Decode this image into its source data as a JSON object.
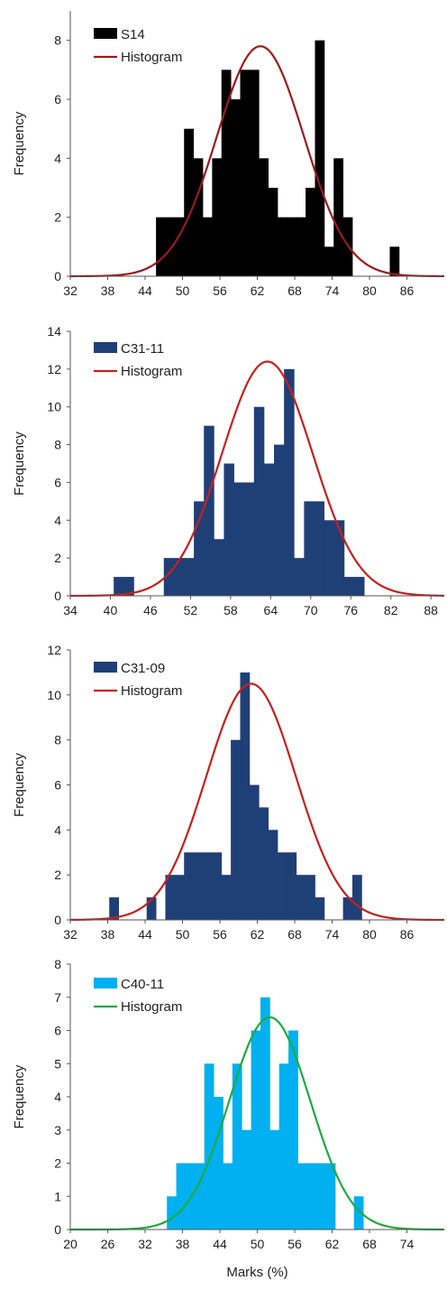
{
  "chart_data": [
    {
      "type": "bar",
      "ylabel": "Frequency",
      "xlabel": "",
      "bar_color": "#000000",
      "curve_color": "#9b1b1b",
      "legend": {
        "bars": "S14",
        "curve": "Histogram",
        "position": "top-left"
      },
      "xlim": [
        32,
        92
      ],
      "xticks": [
        32,
        38,
        44,
        50,
        56,
        62,
        68,
        74,
        80,
        86
      ],
      "ylim": [
        0,
        9
      ],
      "yticks": [
        0,
        2,
        4,
        6,
        8
      ],
      "bin_width": 1.5,
      "bins": [
        45.75,
        47.25,
        48.75,
        50.25,
        51.75,
        53.25,
        54.75,
        56.25,
        57.75,
        59.25,
        60.75,
        62.25,
        63.75,
        65.25,
        66.75,
        68.25,
        69.75,
        71.25,
        72.75,
        74.25,
        75.75,
        77.25,
        78.75,
        80.25,
        81.75,
        83.25,
        84.75
      ],
      "values": [
        2,
        2,
        2,
        5,
        4,
        2,
        4,
        7,
        6,
        7,
        7,
        4,
        3,
        2,
        2,
        2,
        3,
        8,
        1,
        4,
        2,
        0,
        0,
        0,
        0,
        1,
        0
      ],
      "curve": {
        "mean": 62.5,
        "sd": 7,
        "peak": 7.8
      }
    },
    {
      "type": "bar",
      "ylabel": "Frequency",
      "xlabel": "",
      "bar_color": "#1f3f77",
      "curve_color": "#c8201e",
      "legend": {
        "bars": "C31-11",
        "curve": "Histogram",
        "position": "top-left"
      },
      "xlim": [
        34,
        90
      ],
      "xticks": [
        34,
        40,
        46,
        52,
        58,
        64,
        70,
        76,
        82,
        88
      ],
      "ylim": [
        0,
        14
      ],
      "yticks": [
        0,
        2,
        4,
        6,
        8,
        10,
        12,
        14
      ],
      "bin_width": 1.5,
      "bins": [
        40.5,
        42,
        43.5,
        45,
        46.5,
        48,
        49.5,
        51,
        52.5,
        54,
        55.5,
        57,
        58.5,
        60,
        61.5,
        63,
        64.5,
        66,
        67.5,
        69,
        70.5,
        72,
        73.5,
        75,
        76.5
      ],
      "values": [
        1,
        1,
        0,
        0,
        0,
        2,
        2,
        2,
        5,
        9,
        3,
        7,
        6,
        6,
        10,
        7,
        8,
        12,
        2,
        5,
        5,
        4,
        4,
        1,
        1
      ],
      "curve": {
        "mean": 63.5,
        "sd": 6.8,
        "peak": 12.4
      }
    },
    {
      "type": "bar",
      "ylabel": "Frequency",
      "xlabel": "",
      "bar_color": "#1f3f77",
      "curve_color": "#c8201e",
      "legend": {
        "bars": "C31-09",
        "curve": "Histogram",
        "position": "top-left"
      },
      "xlim": [
        32,
        92
      ],
      "xticks": [
        32,
        38,
        44,
        50,
        56,
        62,
        68,
        74,
        80,
        86
      ],
      "ylim": [
        0,
        12
      ],
      "yticks": [
        0,
        2,
        4,
        6,
        8,
        10,
        12
      ],
      "bin_width": 1.5,
      "bins": [
        38.25,
        39.75,
        41.25,
        42.75,
        44.25,
        45.75,
        47.25,
        48.75,
        50.25,
        51.75,
        53.25,
        54.75,
        56.25,
        57.75,
        59.25,
        60.75,
        62.25,
        63.75,
        65.25,
        66.75,
        68.25,
        69.75,
        71.25,
        72.75,
        74.25,
        75.75,
        77.25
      ],
      "values": [
        1,
        0,
        0,
        0,
        1,
        0,
        2,
        2,
        3,
        3,
        3,
        3,
        2,
        8,
        11,
        6,
        5,
        4,
        3,
        3,
        2,
        2,
        1,
        0,
        0,
        1,
        2
      ],
      "curve": {
        "mean": 61,
        "sd": 7.2,
        "peak": 10.5
      }
    },
    {
      "type": "bar",
      "ylabel": "Frequency",
      "xlabel": "Marks (%)",
      "bar_color": "#00b0f0",
      "curve_color": "#1fab3f",
      "legend": {
        "bars": "C40-11",
        "curve": "Histogram",
        "position": "top-left"
      },
      "xlim": [
        20,
        80
      ],
      "xticks": [
        20,
        26,
        32,
        38,
        44,
        50,
        56,
        62,
        68,
        74
      ],
      "ylim": [
        0,
        8
      ],
      "yticks": [
        0,
        1,
        2,
        3,
        4,
        5,
        6,
        7,
        8
      ],
      "bin_width": 1.5,
      "bins": [
        35.5,
        37,
        38.5,
        40,
        41.5,
        43,
        44.5,
        46,
        47.5,
        49,
        50.5,
        52,
        53.5,
        55,
        56.5,
        58,
        59.5,
        61,
        62.5,
        64,
        65.5
      ],
      "values": [
        1,
        2,
        2,
        2,
        5,
        4,
        2,
        5,
        3,
        6,
        7,
        3,
        5,
        6,
        2,
        2,
        2,
        2,
        0,
        0,
        1
      ],
      "curve": {
        "mean": 52,
        "sd": 6.5,
        "peak": 6.4
      }
    }
  ]
}
